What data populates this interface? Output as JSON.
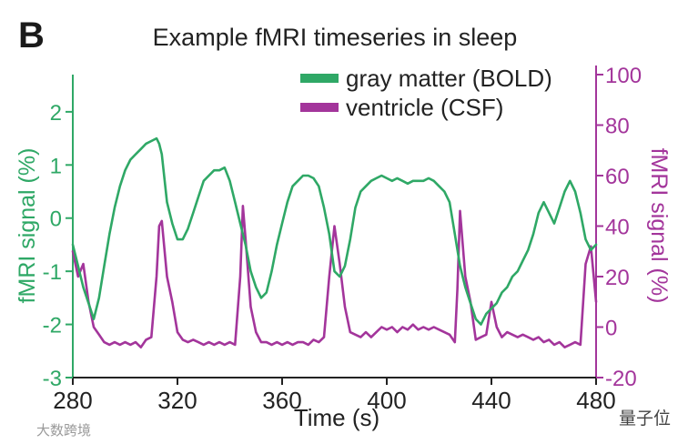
{
  "panel_letter": "B",
  "watermark_left": "大数跨境",
  "watermark_right": "量子位",
  "chart_data": {
    "type": "line",
    "title": "Example fMRI timeseries in sleep",
    "xlabel": "Time (s)",
    "ylabel": "fMRI signal (%)",
    "ylabel_right": "fMRI signal (%)",
    "xlim": [
      280,
      480
    ],
    "ylim": [
      -3,
      2.7
    ],
    "ylim_right": [
      -20,
      100
    ],
    "xticks": [
      280,
      320,
      360,
      400,
      440,
      480
    ],
    "yticks": [
      -3,
      -2,
      -1,
      0,
      1,
      2
    ],
    "yticks_right": [
      -20,
      0,
      20,
      40,
      60,
      80,
      100
    ],
    "legend_position": "top-right",
    "colors": {
      "bold": "#2fa866",
      "csf": "#a3359b"
    },
    "series": [
      {
        "name": "gray matter (BOLD)",
        "axis": "left",
        "color": "#2fa866",
        "x": [
          280,
          282,
          284,
          286,
          288,
          290,
          292,
          294,
          296,
          298,
          300,
          302,
          304,
          306,
          308,
          310,
          312,
          313,
          314,
          316,
          318,
          320,
          322,
          324,
          326,
          328,
          330,
          332,
          334,
          336,
          338,
          340,
          342,
          344,
          346,
          348,
          350,
          352,
          354,
          356,
          358,
          360,
          362,
          364,
          366,
          368,
          370,
          372,
          374,
          376,
          378,
          380,
          382,
          384,
          386,
          388,
          390,
          392,
          394,
          396,
          398,
          400,
          402,
          404,
          406,
          408,
          410,
          412,
          414,
          416,
          418,
          420,
          422,
          424,
          426,
          428,
          430,
          432,
          434,
          436,
          438,
          440,
          442,
          444,
          446,
          448,
          450,
          452,
          454,
          456,
          458,
          460,
          462,
          464,
          466,
          468,
          470,
          472,
          474,
          476,
          478,
          480
        ],
        "y": [
          -0.5,
          -0.9,
          -1.3,
          -1.6,
          -1.9,
          -1.5,
          -0.9,
          -0.3,
          0.2,
          0.6,
          0.9,
          1.1,
          1.2,
          1.3,
          1.4,
          1.45,
          1.5,
          1.4,
          1.2,
          0.3,
          -0.1,
          -0.4,
          -0.4,
          -0.2,
          0.1,
          0.4,
          0.7,
          0.8,
          0.9,
          0.9,
          0.95,
          0.7,
          0.3,
          -0.1,
          -0.5,
          -1.0,
          -1.3,
          -1.5,
          -1.4,
          -1.0,
          -0.5,
          -0.1,
          0.3,
          0.6,
          0.7,
          0.8,
          0.8,
          0.75,
          0.6,
          0.2,
          -0.3,
          -1.0,
          -1.1,
          -0.9,
          -0.4,
          0.2,
          0.5,
          0.6,
          0.7,
          0.75,
          0.8,
          0.75,
          0.7,
          0.75,
          0.7,
          0.65,
          0.7,
          0.7,
          0.7,
          0.75,
          0.7,
          0.6,
          0.5,
          0.3,
          -0.3,
          -0.9,
          -1.3,
          -1.6,
          -1.9,
          -2.0,
          -1.8,
          -1.7,
          -1.6,
          -1.4,
          -1.3,
          -1.1,
          -1.0,
          -0.8,
          -0.6,
          -0.3,
          0.1,
          0.3,
          0.1,
          -0.1,
          0.2,
          0.5,
          0.7,
          0.5,
          0.1,
          -0.4,
          -0.6,
          -0.5
        ]
      },
      {
        "name": "ventricle (CSF)",
        "axis": "right",
        "color": "#a3359b",
        "x": [
          280,
          282,
          284,
          286,
          288,
          290,
          292,
          294,
          296,
          298,
          300,
          302,
          304,
          306,
          308,
          310,
          312,
          313,
          314,
          316,
          318,
          320,
          322,
          324,
          326,
          328,
          330,
          332,
          334,
          336,
          338,
          340,
          342,
          344,
          345,
          346,
          348,
          350,
          352,
          354,
          356,
          358,
          360,
          362,
          364,
          366,
          368,
          370,
          372,
          374,
          376,
          378,
          380,
          382,
          384,
          386,
          388,
          390,
          392,
          394,
          396,
          398,
          400,
          402,
          404,
          406,
          408,
          410,
          412,
          414,
          416,
          418,
          420,
          422,
          424,
          426,
          427,
          428,
          430,
          432,
          434,
          436,
          438,
          440,
          442,
          444,
          446,
          448,
          450,
          452,
          454,
          456,
          458,
          460,
          462,
          464,
          466,
          468,
          470,
          472,
          474,
          476,
          478,
          480
        ],
        "y": [
          30,
          20,
          25,
          10,
          0,
          -3,
          -6,
          -7,
          -6,
          -7,
          -6,
          -7,
          -6,
          -8,
          -5,
          -4,
          20,
          40,
          42,
          20,
          10,
          -2,
          -5,
          -6,
          -5,
          -6,
          -7,
          -6,
          -7,
          -6,
          -7,
          -6,
          -7,
          20,
          48,
          35,
          8,
          -2,
          -6,
          -6,
          -7,
          -6,
          -7,
          -6,
          -7,
          -6,
          -6,
          -7,
          -5,
          -6,
          -4,
          20,
          40,
          25,
          8,
          -2,
          -3,
          -4,
          -2,
          -4,
          -2,
          0,
          -1,
          0,
          -2,
          0,
          -1,
          1,
          -1,
          0,
          -1,
          0,
          -1,
          -2,
          -3,
          -6,
          15,
          46,
          20,
          10,
          -5,
          -4,
          -3,
          10,
          0,
          -4,
          -2,
          -3,
          -4,
          -3,
          -4,
          -5,
          -4,
          -6,
          -5,
          -7,
          -6,
          -8,
          -7,
          -6,
          -7,
          25,
          32,
          10
        ]
      }
    ]
  }
}
